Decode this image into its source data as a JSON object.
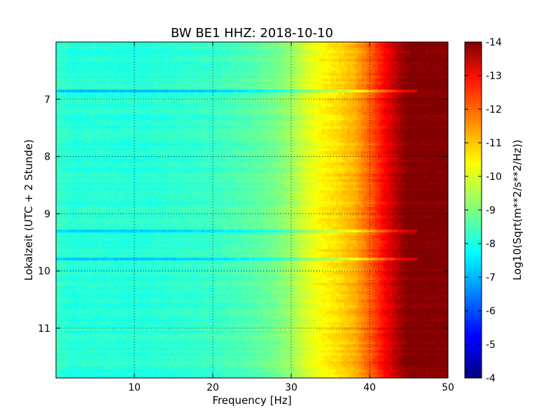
{
  "chart_data": {
    "type": "heatmap",
    "title": "BW BE1 HHZ: 2018-10-10",
    "xlabel": "Frequency [Hz]",
    "ylabel": "Lokalzeit (UTC + 2 Stunde)",
    "xlim": [
      0,
      50
    ],
    "ylim": [
      11.87,
      6.0
    ],
    "x_ticks": [
      "10",
      "20",
      "30",
      "40",
      "50"
    ],
    "y_ticks": [
      "7",
      "8",
      "9",
      "10",
      "11"
    ],
    "colorbar": {
      "label": "Log10(Sqrt(m**2/s**2/Hz))",
      "range": [
        -14,
        -4
      ],
      "ticks": [
        "-4",
        "-5",
        "-6",
        "-7",
        "-8",
        "-9",
        "-10",
        "-11",
        "-12",
        "-13",
        "-14"
      ],
      "colormap": "jet"
    },
    "grid": true,
    "spectral_profile": {
      "frequency_hz": [
        0,
        2,
        5,
        10,
        15,
        20,
        25,
        28,
        30,
        32,
        34,
        36,
        38,
        40,
        42,
        44,
        45,
        46,
        48,
        50
      ],
      "log10_psd": [
        -8.3,
        -8.1,
        -8.15,
        -8.1,
        -8.2,
        -8.3,
        -8.6,
        -8.9,
        -9.3,
        -9.9,
        -10.3,
        -10.6,
        -11.0,
        -11.8,
        -12.8,
        -13.7,
        -14.0,
        -14.0,
        -14.0,
        -14.0
      ]
    },
    "bright_bands_hours": [
      6.85,
      9.28,
      9.78
    ],
    "colors": {
      "frame": "#000000",
      "grid": "#000000",
      "background": "#ffffff"
    }
  }
}
